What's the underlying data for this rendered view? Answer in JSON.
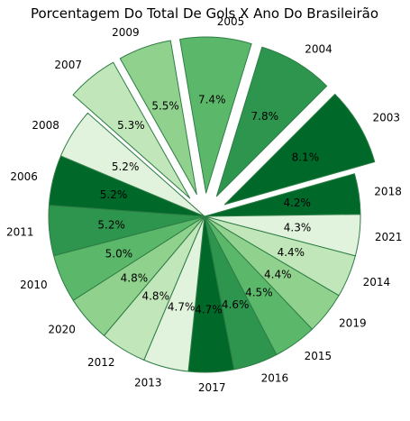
{
  "chart_data": {
    "type": "pie",
    "title": "Porcentagem Do Total De Gols X Ano Do Brasileirão",
    "slices": [
      {
        "label": "2003",
        "value": 8.1,
        "color": "#00692a",
        "explode": true
      },
      {
        "label": "2018",
        "value": 4.2,
        "color": "#00692a",
        "explode": false
      },
      {
        "label": "2021",
        "value": 4.3,
        "color": "#e1f3dc",
        "explode": false
      },
      {
        "label": "2014",
        "value": 4.4,
        "color": "#c0e6b9",
        "explode": false
      },
      {
        "label": "2019",
        "value": 4.4,
        "color": "#90d18d",
        "explode": false
      },
      {
        "label": "2015",
        "value": 4.5,
        "color": "#5bb86a",
        "explode": false
      },
      {
        "label": "2016",
        "value": 4.6,
        "color": "#2d954d",
        "explode": false
      },
      {
        "label": "2017",
        "value": 4.7,
        "color": "#00692a",
        "explode": false
      },
      {
        "label": "2013",
        "value": 4.7,
        "color": "#e1f3dc",
        "explode": false
      },
      {
        "label": "2012",
        "value": 4.8,
        "color": "#c0e6b9",
        "explode": false
      },
      {
        "label": "2020",
        "value": 4.8,
        "color": "#90d18d",
        "explode": false
      },
      {
        "label": "2010",
        "value": 5.0,
        "color": "#5bb86a",
        "explode": false
      },
      {
        "label": "2011",
        "value": 5.2,
        "color": "#2d954d",
        "explode": false
      },
      {
        "label": "2006",
        "value": 5.2,
        "color": "#00692a",
        "explode": false
      },
      {
        "label": "2008",
        "value": 5.2,
        "color": "#e1f3dc",
        "explode": false
      },
      {
        "label": "2007",
        "value": 5.3,
        "color": "#c0e6b9",
        "explode": true
      },
      {
        "label": "2009",
        "value": 5.5,
        "color": "#90d18d",
        "explode": true
      },
      {
        "label": "2005",
        "value": 7.4,
        "color": "#5bb86a",
        "explode": true
      },
      {
        "label": "2004",
        "value": 7.8,
        "color": "#2d954d",
        "explode": true
      }
    ],
    "value_suffix": "%",
    "legend": "none"
  }
}
